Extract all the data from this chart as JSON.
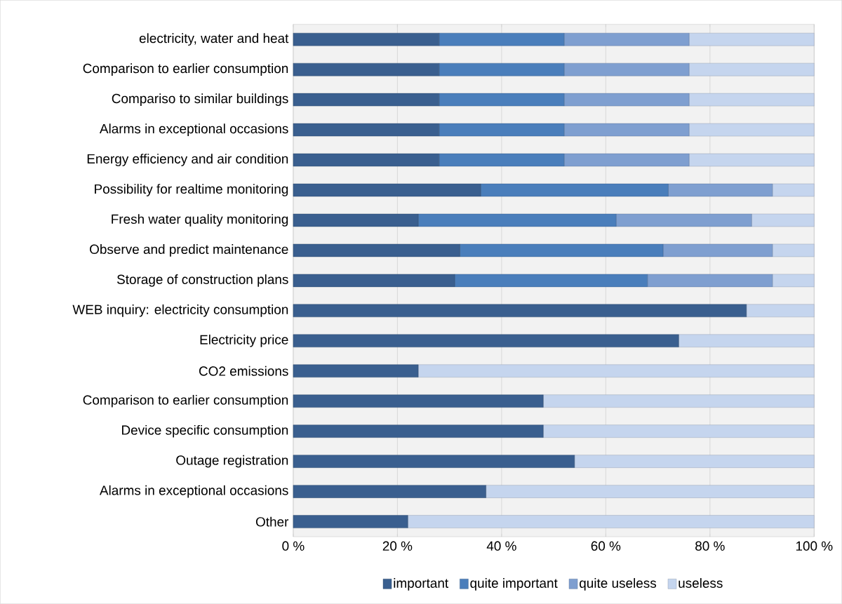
{
  "chart_data": {
    "type": "bar",
    "orientation": "horizontal",
    "stacked": true,
    "grid": "x",
    "legend": "bottom",
    "categories": [
      "electricity, water and heat",
      "Comparison to earlier consumption",
      "Compariso to similar buildings",
      "Alarms in exceptional occasions",
      "Energy efficiency and air condition",
      "Possibility for realtime monitoring",
      "Fresh water quality monitoring",
      "Observe and predict maintenance",
      "Storage of construction plans",
      "WEB inquiry: electricity consumption",
      "Electricity price",
      "CO2 emissions",
      "Comparison to earlier consumption",
      "Device specific consumption",
      "Outage registration",
      "Alarms in exceptional occasions",
      "Other"
    ],
    "series": [
      {
        "name": "important",
        "color": "#3a5f8f",
        "values": [
          28,
          28,
          28,
          28,
          28,
          36,
          24,
          32,
          31,
          87,
          74,
          24,
          48,
          48,
          54,
          37,
          22
        ]
      },
      {
        "name": "quite important",
        "color": "#4a7ebb",
        "values": [
          24,
          24,
          24,
          24,
          24,
          36,
          38,
          39,
          37,
          0,
          0,
          0,
          0,
          0,
          0,
          0,
          0
        ]
      },
      {
        "name": "quite useless",
        "color": "#7f9fd0",
        "values": [
          24,
          24,
          24,
          24,
          24,
          20,
          26,
          21,
          24,
          0,
          0,
          0,
          0,
          0,
          0,
          0,
          0
        ]
      },
      {
        "name": "useless",
        "color": "#c5d5ee",
        "values": [
          24,
          24,
          24,
          24,
          24,
          8,
          12,
          8,
          8,
          13,
          26,
          76,
          52,
          52,
          46,
          63,
          78
        ]
      }
    ],
    "xlim": [
      0,
      100
    ],
    "xticks": [
      {
        "value": 0,
        "label": "0 %"
      },
      {
        "value": 20,
        "label": "20 %"
      },
      {
        "value": 40,
        "label": "40 %"
      },
      {
        "value": 60,
        "label": "60 %"
      },
      {
        "value": 80,
        "label": "80 %"
      },
      {
        "value": 100,
        "label": "100 %"
      }
    ]
  }
}
